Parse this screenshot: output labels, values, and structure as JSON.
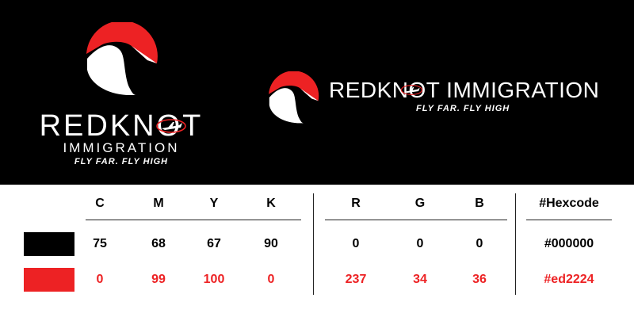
{
  "brand": {
    "name": "REDKNOT",
    "subname": "IMMIGRATION",
    "full_name": "REDKNOT IMMIGRATION",
    "tagline": "FLY FAR. FLY HIGH",
    "icon": "bird-head-icon",
    "plane_icon": "airplane-orbit-icon"
  },
  "palette": {
    "headers": [
      "C",
      "M",
      "Y",
      "K",
      "R",
      "G",
      "B",
      "#Hexcode"
    ],
    "rows": [
      {
        "name": "black",
        "values": [
          "75",
          "68",
          "67",
          "90",
          "0",
          "0",
          "0",
          "#000000"
        ]
      },
      {
        "name": "red",
        "values": [
          "0",
          "99",
          "100",
          "0",
          "237",
          "34",
          "36",
          "#ed2224"
        ]
      }
    ]
  },
  "colors": {
    "background": "#000000",
    "accent": "#ed2224",
    "logo_text": "#ffffff"
  }
}
